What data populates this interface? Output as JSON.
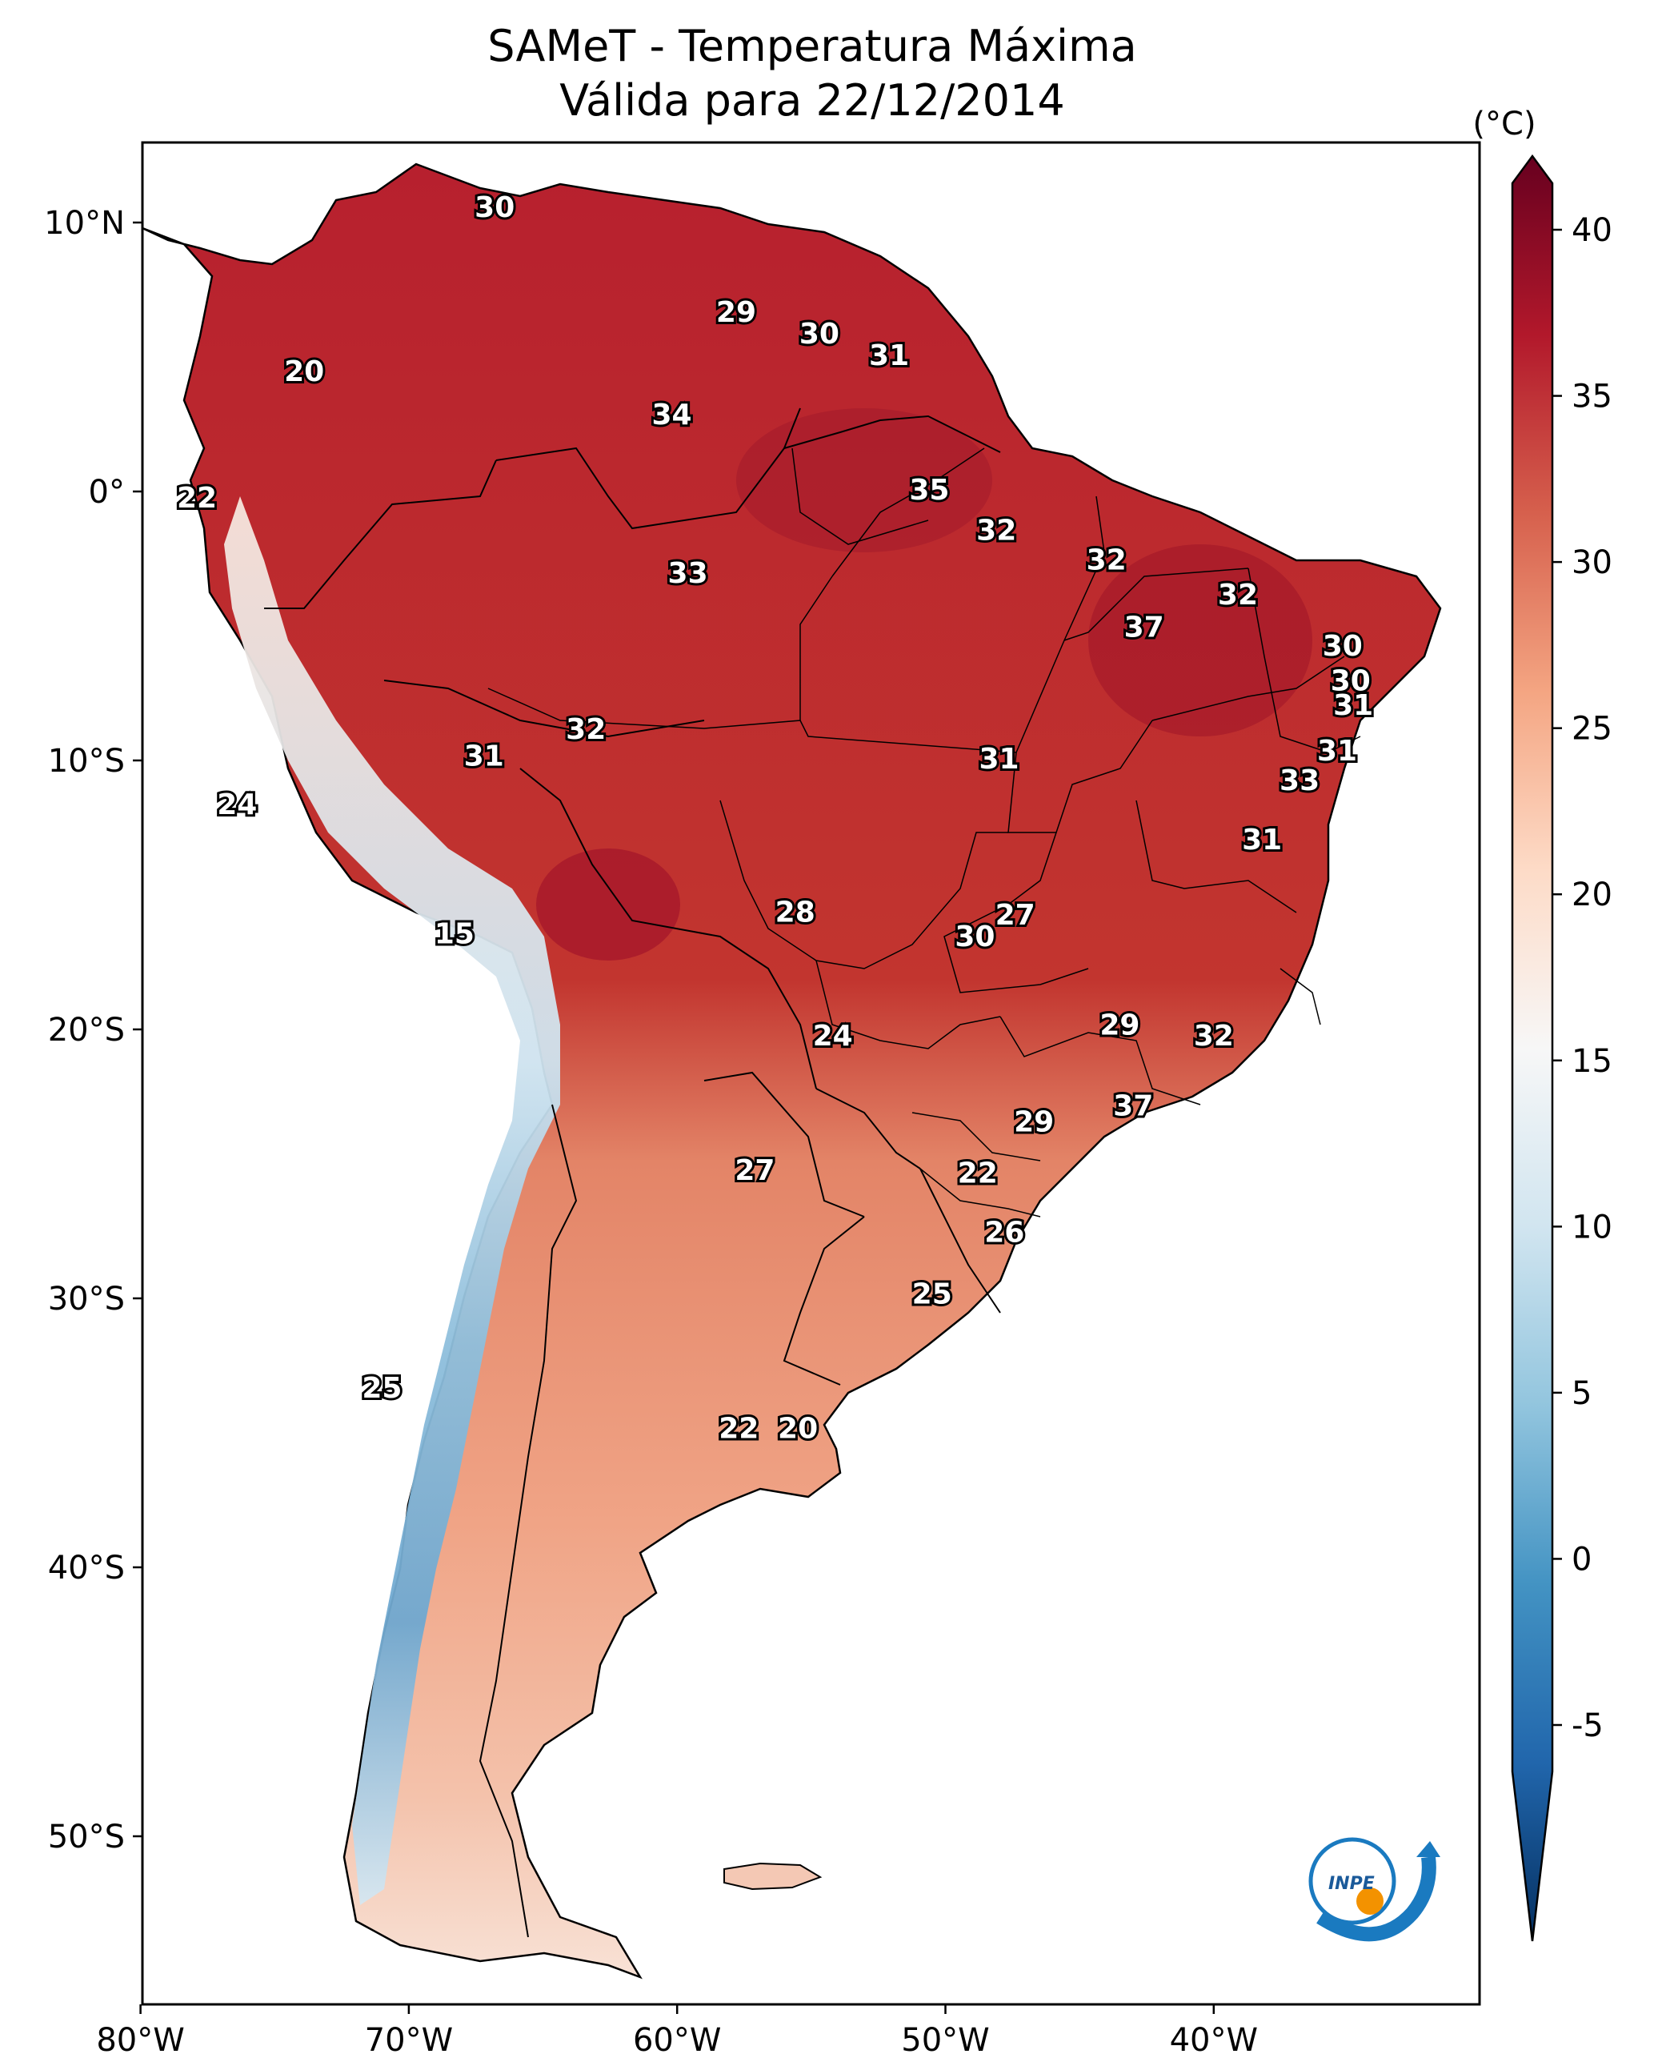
{
  "title": {
    "line1": "SAMeT - Temperatura Máxima",
    "line2": "Válida para 22/12/2014"
  },
  "map": {
    "region": "South America",
    "lon_ticks": [
      {
        "value": -80,
        "label": "80°W"
      },
      {
        "value": -70,
        "label": "70°W"
      },
      {
        "value": -60,
        "label": "60°W"
      },
      {
        "value": -50,
        "label": "50°W"
      },
      {
        "value": -40,
        "label": "40°W"
      }
    ],
    "lat_ticks": [
      {
        "value": 10,
        "label": "10°N"
      },
      {
        "value": 0,
        "label": "0°"
      },
      {
        "value": -10,
        "label": "10°S"
      },
      {
        "value": -20,
        "label": "20°S"
      },
      {
        "value": -30,
        "label": "30°S"
      },
      {
        "value": -40,
        "label": "40°S"
      },
      {
        "value": -50,
        "label": "50°S"
      }
    ],
    "contour_labels": [
      {
        "text": "30",
        "lon": -66.8,
        "lat": 10.5
      },
      {
        "text": "29",
        "lon": -57.8,
        "lat": 6.6
      },
      {
        "text": "30",
        "lon": -54.7,
        "lat": 5.8
      },
      {
        "text": "31",
        "lon": -52.1,
        "lat": 5.0
      },
      {
        "text": "20",
        "lon": -73.9,
        "lat": 4.4
      },
      {
        "text": "34",
        "lon": -60.2,
        "lat": 2.8
      },
      {
        "text": "22",
        "lon": -77.9,
        "lat": -0.3
      },
      {
        "text": "35",
        "lon": -50.6,
        "lat": -0.0
      },
      {
        "text": "32",
        "lon": -48.1,
        "lat": -1.5
      },
      {
        "text": "32",
        "lon": -44.0,
        "lat": -2.6
      },
      {
        "text": "33",
        "lon": -59.6,
        "lat": -3.1
      },
      {
        "text": "32",
        "lon": -39.1,
        "lat": -3.9
      },
      {
        "text": "37",
        "lon": -42.6,
        "lat": -5.1
      },
      {
        "text": "30",
        "lon": -35.2,
        "lat": -5.8
      },
      {
        "text": "30",
        "lon": -34.9,
        "lat": -7.1
      },
      {
        "text": "31",
        "lon": -34.8,
        "lat": -8.0
      },
      {
        "text": "32",
        "lon": -63.4,
        "lat": -8.9
      },
      {
        "text": "31",
        "lon": -67.2,
        "lat": -9.9
      },
      {
        "text": "31",
        "lon": -48.0,
        "lat": -10.0
      },
      {
        "text": "31",
        "lon": -35.4,
        "lat": -9.7
      },
      {
        "text": "33",
        "lon": -36.8,
        "lat": -10.8
      },
      {
        "text": "31",
        "lon": -38.2,
        "lat": -13.0
      },
      {
        "text": "24",
        "lon": -76.4,
        "lat": -11.7
      },
      {
        "text": "28",
        "lon": -55.6,
        "lat": -15.7
      },
      {
        "text": "27",
        "lon": -47.4,
        "lat": -15.8
      },
      {
        "text": "30",
        "lon": -48.9,
        "lat": -16.6
      },
      {
        "text": "15",
        "lon": -68.3,
        "lat": -16.5
      },
      {
        "text": "24",
        "lon": -54.2,
        "lat": -20.3
      },
      {
        "text": "29",
        "lon": -43.5,
        "lat": -19.9
      },
      {
        "text": "32",
        "lon": -40.0,
        "lat": -20.3
      },
      {
        "text": "37",
        "lon": -43.0,
        "lat": -22.9
      },
      {
        "text": "29",
        "lon": -46.7,
        "lat": -23.5
      },
      {
        "text": "27",
        "lon": -57.1,
        "lat": -25.3
      },
      {
        "text": "22",
        "lon": -48.8,
        "lat": -25.4
      },
      {
        "text": "26",
        "lon": -47.8,
        "lat": -27.6
      },
      {
        "text": "25",
        "lon": -50.5,
        "lat": -29.9
      },
      {
        "text": "25",
        "lon": -71.0,
        "lat": -33.4
      },
      {
        "text": "22",
        "lon": -57.7,
        "lat": -34.9
      },
      {
        "text": "20",
        "lon": -55.5,
        "lat": -34.9
      }
    ]
  },
  "colorbar": {
    "unit": "(°C)",
    "min": -7,
    "max": 42,
    "ticks": [
      {
        "value": 40,
        "label": "40"
      },
      {
        "value": 35,
        "label": "35"
      },
      {
        "value": 30,
        "label": "30"
      },
      {
        "value": 25,
        "label": "25"
      },
      {
        "value": 20,
        "label": "20"
      },
      {
        "value": 15,
        "label": "15"
      },
      {
        "value": 10,
        "label": "10"
      },
      {
        "value": 5,
        "label": "5"
      },
      {
        "value": 0,
        "label": "0"
      },
      {
        "value": -5,
        "label": "-5"
      }
    ],
    "colors": {
      "dark_red": "#67001f",
      "red": "#b2182b",
      "light_red": "#d6604d",
      "salmon": "#f4a582",
      "peach": "#fddbc7",
      "white": "#f7f7f7",
      "light_blue": "#d1e5f0",
      "sky": "#92c5de",
      "blue": "#4393c3",
      "mid_blue": "#2166ac",
      "navy": "#053061"
    }
  },
  "logo": {
    "text": "INPE",
    "ring_color": "#1a7ac0",
    "dot_color": "#f39200"
  }
}
